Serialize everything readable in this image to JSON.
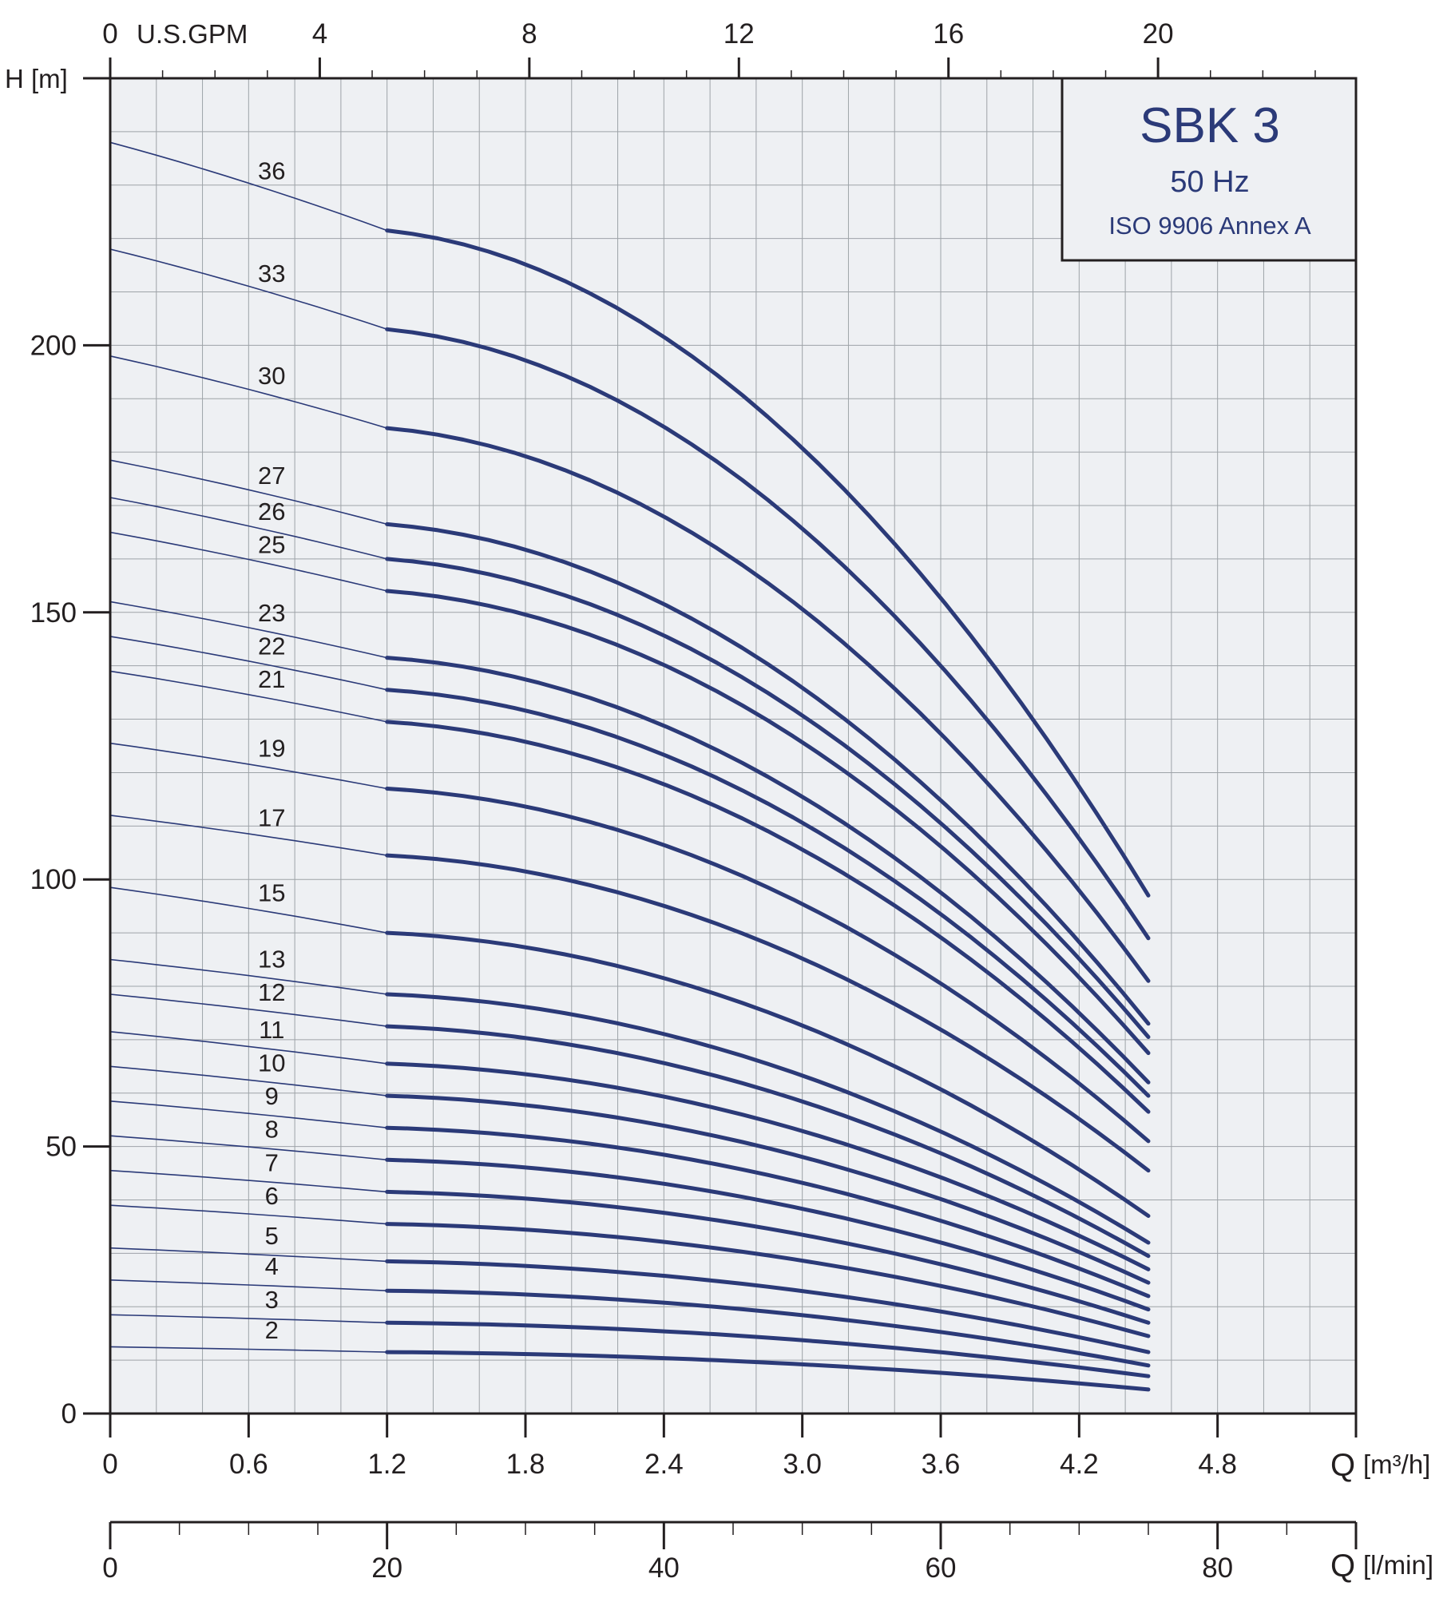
{
  "chart_data": {
    "type": "line",
    "title": "SBK 3",
    "subtitle": "50 Hz",
    "standard": "ISO 9906 Annex A",
    "ylabel": "H [m]",
    "xlabel": "Q",
    "xlabel_unit": "[m³/h]",
    "x2label": "Q",
    "x2label_unit": "[l/min]",
    "top_axis_label": "U.S.GPM",
    "xlim": [
      0,
      5.4
    ],
    "ylim": [
      0,
      250
    ],
    "grid": true,
    "x_ticks": [
      "0",
      "0.6",
      "1.2",
      "1.8",
      "2.4",
      "3.0",
      "3.6",
      "4.2",
      "4.8"
    ],
    "y_ticks": [
      "0",
      "50",
      "100",
      "150",
      "200"
    ],
    "lmin_ticks": [
      "0",
      "20",
      "40",
      "60",
      "80"
    ],
    "gpm_ticks": [
      "0",
      "4",
      "8",
      "12",
      "16",
      "20"
    ],
    "x": [
      0,
      1.2,
      4.5
    ],
    "series": [
      {
        "name": "36",
        "values": [
          238,
          221.5,
          97
        ]
      },
      {
        "name": "33",
        "values": [
          218,
          203,
          89
        ]
      },
      {
        "name": "30",
        "values": [
          198,
          184.5,
          81
        ]
      },
      {
        "name": "27",
        "values": [
          178.5,
          166.5,
          73
        ]
      },
      {
        "name": "26",
        "values": [
          171.5,
          160,
          70.5
        ]
      },
      {
        "name": "25",
        "values": [
          165,
          154,
          67.5
        ]
      },
      {
        "name": "23",
        "values": [
          152,
          141.5,
          62
        ]
      },
      {
        "name": "22",
        "values": [
          145.5,
          135.5,
          59.5
        ]
      },
      {
        "name": "21",
        "values": [
          139,
          129.5,
          56.5
        ]
      },
      {
        "name": "19",
        "values": [
          125.5,
          117,
          51
        ]
      },
      {
        "name": "17",
        "values": [
          112,
          104.5,
          45.5
        ]
      },
      {
        "name": "15",
        "values": [
          98.5,
          90,
          37
        ]
      },
      {
        "name": "13",
        "values": [
          85,
          78.5,
          32
        ]
      },
      {
        "name": "12",
        "values": [
          78.5,
          72.5,
          29.5
        ]
      },
      {
        "name": "11",
        "values": [
          71.5,
          65.5,
          27
        ]
      },
      {
        "name": "10",
        "values": [
          65,
          59.5,
          24.5
        ]
      },
      {
        "name": "9",
        "values": [
          58.5,
          53.5,
          22
        ]
      },
      {
        "name": "8",
        "values": [
          52,
          47.5,
          19.5
        ]
      },
      {
        "name": "7",
        "values": [
          45.5,
          41.5,
          17
        ]
      },
      {
        "name": "6",
        "values": [
          39,
          35.5,
          14.5
        ]
      },
      {
        "name": "5",
        "values": [
          31,
          28.5,
          11.5
        ]
      },
      {
        "name": "4",
        "values": [
          25,
          23,
          9
        ]
      },
      {
        "name": "3",
        "values": [
          18.5,
          17,
          7
        ]
      },
      {
        "name": "2",
        "values": [
          12.5,
          11.5,
          4.5
        ]
      }
    ],
    "colors": {
      "curve": "#2b3a78",
      "grid": "#9ea3a8",
      "plot_bg": "#eef0f3",
      "axis": "#231f20",
      "title": "#2b3a78"
    }
  }
}
